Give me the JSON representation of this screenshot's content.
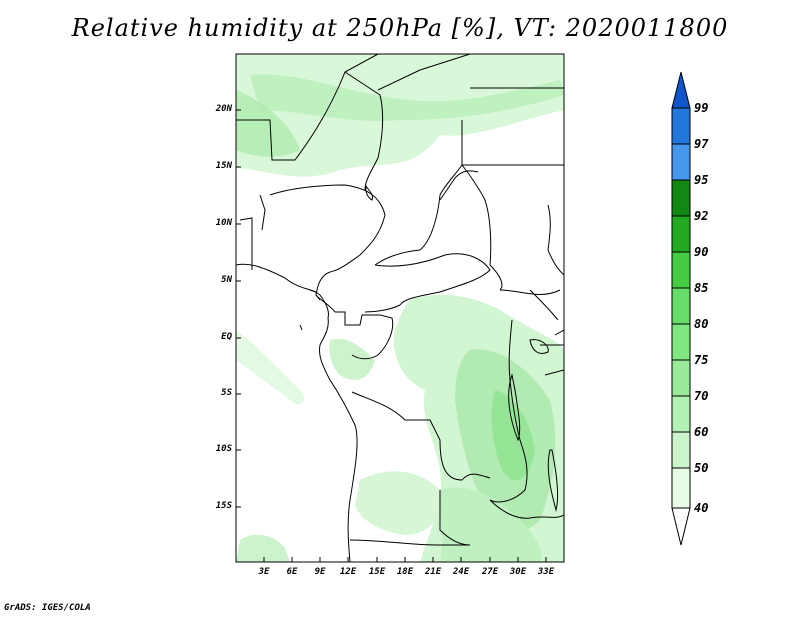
{
  "title": "Relative humidity at 250hPa [%], VT: 2020011800",
  "credit": "GrADS: IGES/COLA",
  "latitude_ticks": [
    "20N",
    "15N",
    "10N",
    "5N",
    "EQ",
    "5S",
    "10S",
    "15S"
  ],
  "longitude_ticks": [
    "3E",
    "6E",
    "9E",
    "12E",
    "15E",
    "18E",
    "21E",
    "24E",
    "27E",
    "30E",
    "33E"
  ],
  "colorbar": {
    "labels": [
      "40",
      "50",
      "60",
      "70",
      "75",
      "80",
      "85",
      "90",
      "92",
      "95",
      "97",
      "99"
    ],
    "colors": [
      "#ffffff",
      "#e6fae6",
      "#ccf5cc",
      "#b3f0b3",
      "#99eb99",
      "#80e680",
      "#66dd66",
      "#44cc44",
      "#22aa22",
      "#118811",
      "#4499ee",
      "#2277dd",
      "#1155cc"
    ]
  },
  "colors": {
    "light_green": "#d9f7d9",
    "mid_green": "#aeeaae",
    "border_line": "#000000"
  }
}
